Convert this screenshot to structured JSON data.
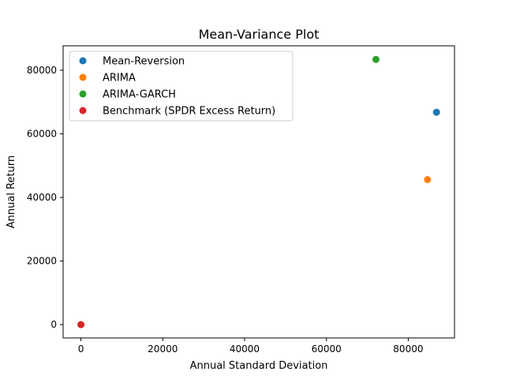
{
  "chart_data": {
    "type": "scatter",
    "title": "Mean-Variance Plot",
    "xlabel": "Annual Standard Deviation",
    "ylabel": "Annual Return",
    "xlim": [
      -4350,
      91300
    ],
    "ylim": [
      -4200,
      87700
    ],
    "xticks": [
      0,
      20000,
      40000,
      60000,
      80000
    ],
    "yticks": [
      0,
      20000,
      40000,
      60000,
      80000
    ],
    "grid": false,
    "legend_position": "top-left",
    "series": [
      {
        "name": "Mean-Reversion",
        "color": "#1f77b4",
        "x": [
          86900
        ],
        "y": [
          66800
        ]
      },
      {
        "name": "ARIMA",
        "color": "#ff7f0e",
        "x": [
          84700
        ],
        "y": [
          45600
        ]
      },
      {
        "name": "ARIMA-GARCH",
        "color": "#2ca02c",
        "x": [
          72100
        ],
        "y": [
          83400
        ]
      },
      {
        "name": "Benchmark (SPDR Excess Return)",
        "color": "#d62728",
        "x": [
          0
        ],
        "y": [
          0
        ]
      }
    ]
  }
}
